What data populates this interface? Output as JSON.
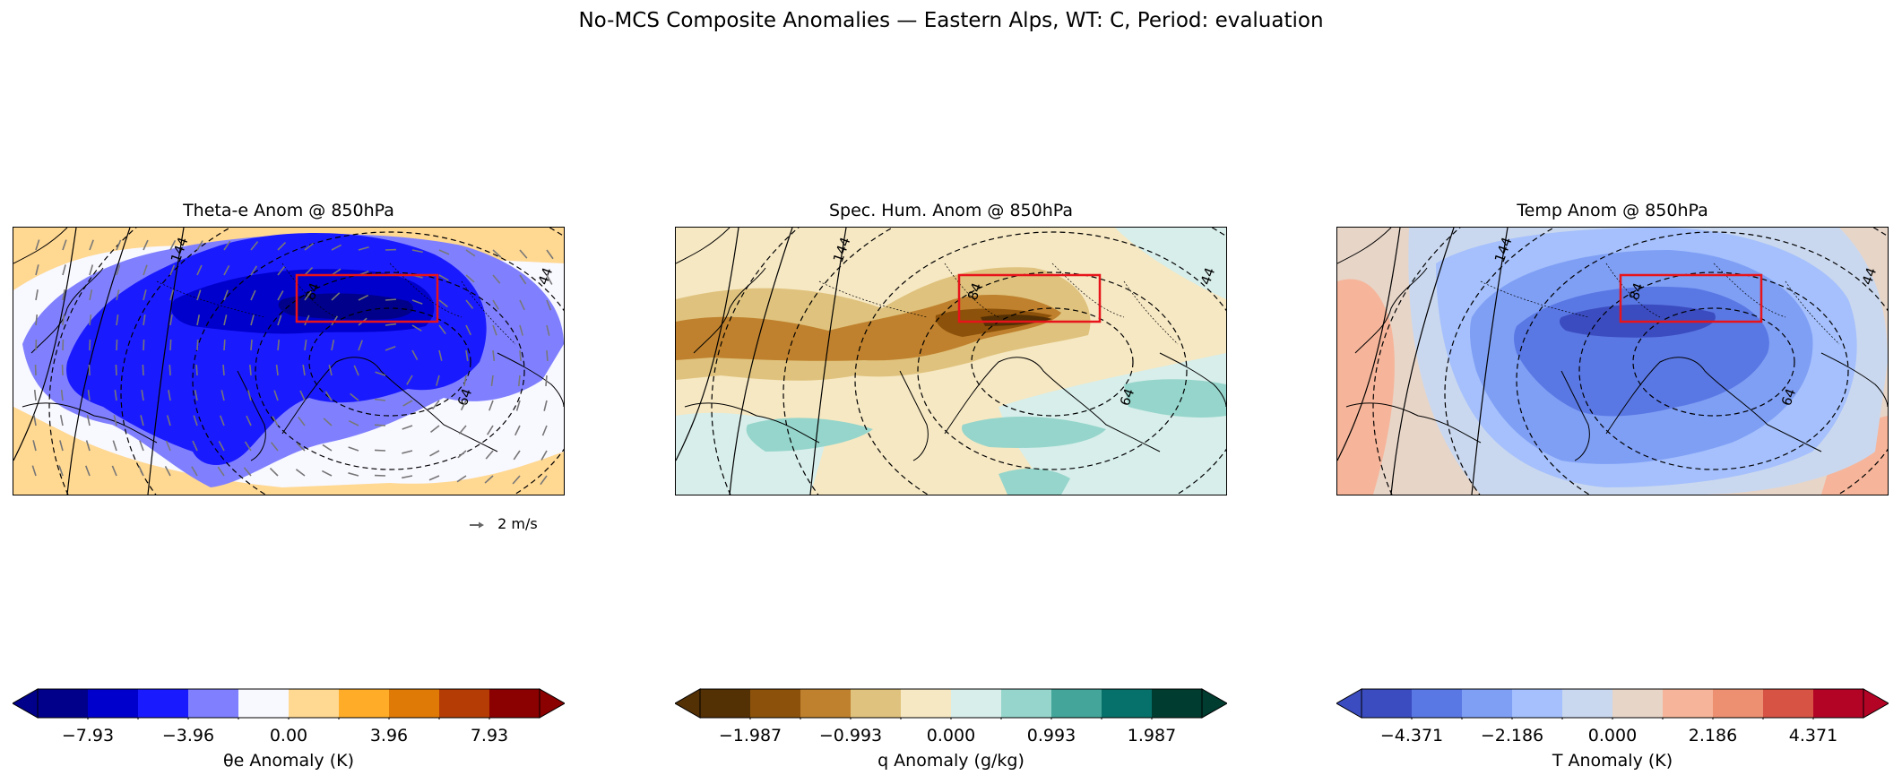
{
  "title": "No-MCS Composite Anomalies — Eastern Alps, WT: C, Period: evaluation",
  "colors": {
    "box": "#e8141b",
    "contour": "#000000",
    "theta_e_levels": [
      "#00008b",
      "#0000cd",
      "#1a1aff",
      "#8080ff",
      "#f8f8ff",
      "#ffd892",
      "#ffad28",
      "#e07a06",
      "#b53d05",
      "#8b0000"
    ],
    "q_levels": [
      "#543005",
      "#8c510a",
      "#bf812d",
      "#dfc27d",
      "#f6e8c3",
      "#d7eeea",
      "#95d5cb",
      "#44a59a",
      "#06706a",
      "#003c30"
    ],
    "t_levels": [
      "#3b4cc0",
      "#5a78e4",
      "#7f9ff5",
      "#a5c0fc",
      "#cad8ef",
      "#e7d5c8",
      "#f6b59a",
      "#ed8f71",
      "#d75445",
      "#b40426"
    ]
  },
  "panels": [
    {
      "title": "Theta-e Anom @ 850hPa",
      "cbar_label": "θe Anomaly (K)",
      "ticks": [
        "−7.93",
        "−3.96",
        "0.00",
        "3.96",
        "7.93"
      ],
      "contour_labels": [
        "144",
        "84",
        "64",
        "44"
      ],
      "quiver_key": "2 m/s"
    },
    {
      "title": "Spec. Hum. Anom @ 850hPa",
      "cbar_label": "q Anomaly (g/kg)",
      "ticks": [
        "−1.987",
        "−0.993",
        "0.000",
        "0.993",
        "1.987"
      ],
      "contour_labels": [
        "144",
        "84",
        "64",
        "44"
      ]
    },
    {
      "title": "Temp Anom @ 850hPa",
      "cbar_label": "T Anomaly (K)",
      "ticks": [
        "−4.371",
        "−2.186",
        "0.000",
        "2.186",
        "4.371"
      ],
      "contour_labels": [
        "144",
        "84",
        "64",
        "44"
      ]
    }
  ],
  "chart_data": [
    {
      "type": "heatmap",
      "title": "Theta-e Anom @ 850hPa",
      "colorbar_label": "θe Anomaly (K)",
      "colorbar_ticks": [
        -7.93,
        -3.96,
        0.0,
        3.96,
        7.93
      ],
      "colorbar_range": [
        -9.92,
        9.92
      ],
      "colorbar_extend": "both",
      "overlays": [
        "dashed geopotential contours (44, 64, 84, 144)",
        "wind anomaly vectors",
        "red target box (Eastern Alps)"
      ]
    },
    {
      "type": "heatmap",
      "title": "Spec. Hum. Anom @ 850hPa",
      "colorbar_label": "q Anomaly (g/kg)",
      "colorbar_ticks": [
        -1.987,
        -0.993,
        0.0,
        0.993,
        1.987
      ],
      "colorbar_range": [
        -2.484,
        2.484
      ],
      "colorbar_extend": "both"
    },
    {
      "type": "heatmap",
      "title": "Temp Anom @ 850hPa",
      "colorbar_label": "T Anomaly (K)",
      "colorbar_ticks": [
        -4.371,
        -2.186,
        0.0,
        2.186,
        4.371
      ],
      "colorbar_range": [
        -5.464,
        5.464
      ],
      "colorbar_extend": "both"
    }
  ]
}
